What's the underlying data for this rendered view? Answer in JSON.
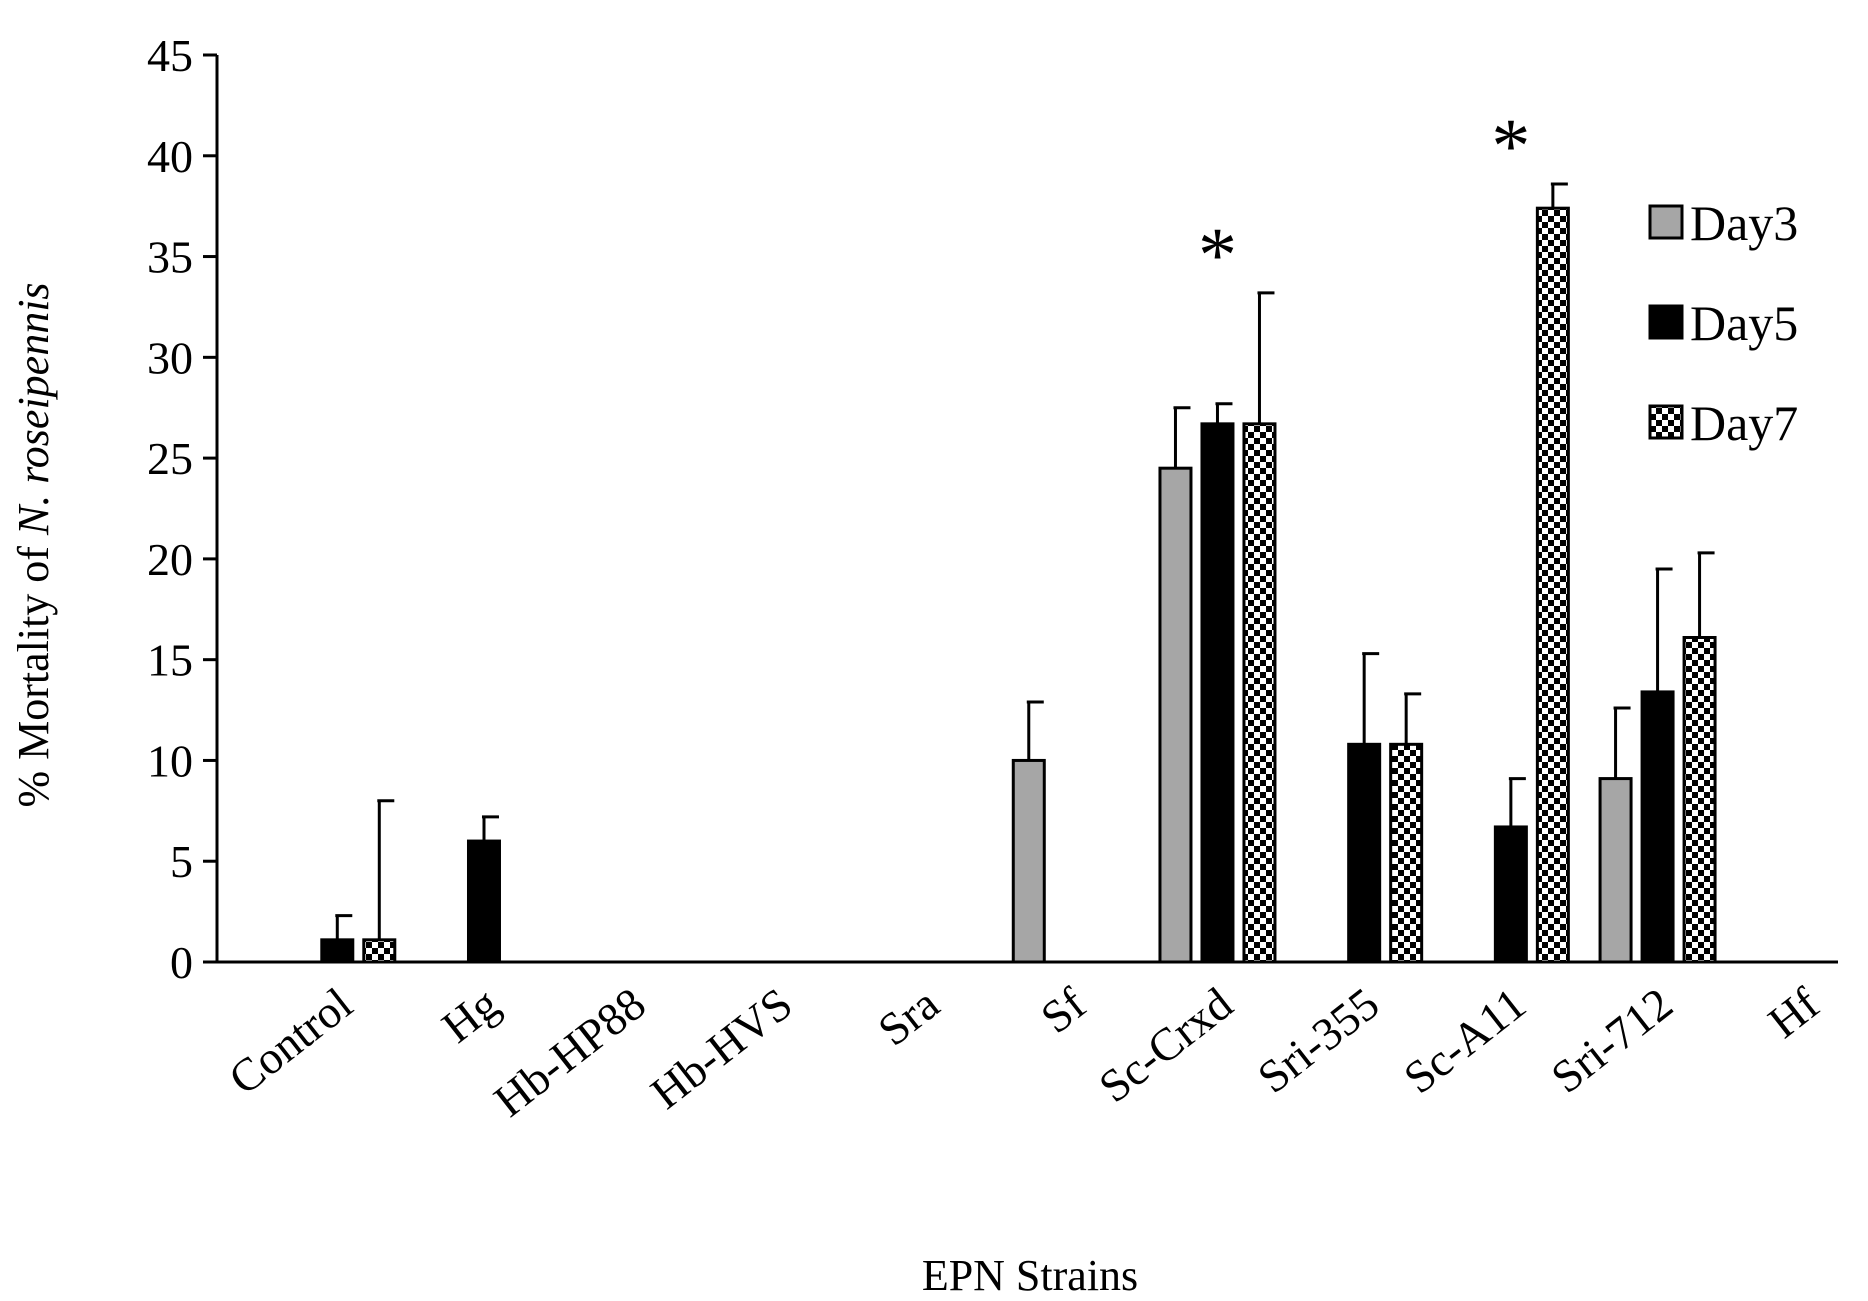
{
  "chart_data": {
    "type": "bar",
    "title": "",
    "xlabel": "EPN Strains",
    "ylabel_prefix": "% Mortality of ",
    "ylabel_italic": "N. roseipennis",
    "ylim": [
      0,
      45
    ],
    "yticks": [
      0,
      5,
      10,
      15,
      20,
      25,
      30,
      35,
      40,
      45
    ],
    "categories": [
      "Control",
      "Hg",
      "Hb-HP88",
      "Hb-HVS",
      "Sra",
      "Sf",
      "Sc-Crxd",
      "Sri-355",
      "Sc-A11",
      "Sri-712",
      "Hf"
    ],
    "series": [
      {
        "name": "Day3",
        "fill": "gray",
        "values": [
          0,
          0,
          0,
          0,
          0,
          10,
          24.5,
          0,
          0,
          9.1,
          0
        ],
        "errors": [
          0,
          0,
          0,
          0,
          0,
          2.9,
          3,
          0,
          0,
          3.5,
          0
        ]
      },
      {
        "name": "Day5",
        "fill": "black",
        "values": [
          1.1,
          6,
          0,
          0,
          0,
          0,
          26.7,
          10.8,
          6.7,
          13.4,
          0
        ],
        "errors": [
          1.2,
          1.2,
          0,
          0,
          0,
          0,
          1,
          4.5,
          2.4,
          6.1,
          0
        ]
      },
      {
        "name": "Day7",
        "fill": "checker",
        "values": [
          1.1,
          0,
          0,
          0,
          0,
          0,
          26.7,
          10.8,
          37.4,
          16.1,
          0
        ],
        "errors": [
          6.9,
          0,
          0,
          0,
          0,
          0,
          6.5,
          2.5,
          1.2,
          4.2,
          0
        ]
      }
    ],
    "annotations": [
      {
        "text": "*",
        "category": "Sc-Crxd"
      },
      {
        "text": "*",
        "category": "Sc-A11"
      }
    ],
    "legend": {
      "position": "right"
    },
    "grid": false,
    "colors": {
      "gray": "#a6a6a6",
      "black": "#000000",
      "white": "#ffffff"
    }
  }
}
